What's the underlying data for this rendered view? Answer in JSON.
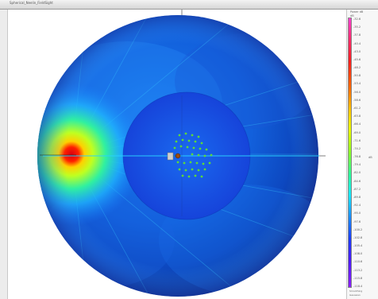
{
  "window": {
    "title": "Spherical_Neelin_FieldSight"
  },
  "legend": {
    "title": "Power dB",
    "subtitle": "dB",
    "ticks": [
      "-32.6",
      "-35.2",
      "-37.8",
      "-40.4",
      "-43.0",
      "-45.6",
      "-48.2",
      "-50.8",
      "-53.4",
      "-56.0",
      "-58.6",
      "-61.2",
      "-63.8",
      "-66.4",
      "-69.0",
      "-71.6",
      "-74.2",
      "-76.8",
      "-79.4",
      "-82.0",
      "-84.6",
      "-87.2",
      "-89.8",
      "-92.4",
      "-95.0",
      "-97.6",
      "-100.2",
      "-102.8",
      "-105.4",
      "-108.0",
      "-110.6",
      "-113.2",
      "-115.8",
      "-118.4"
    ],
    "axis_marker": "dB",
    "footer": [
      "Smoothing",
      "Gaussian"
    ]
  },
  "colors": {
    "sphere_deep": "#0a2a9a",
    "sphere_mid": "#1166e0",
    "sphere_light": "#2cb8ff",
    "hotspot_core": "#e8001a",
    "hotspot_ring": "#ffe000",
    "hotspot_glow": "#40ff60",
    "inner_disk": "#1650e6",
    "markers": "#5cd93a",
    "crosshair": "#2a2a2a"
  }
}
